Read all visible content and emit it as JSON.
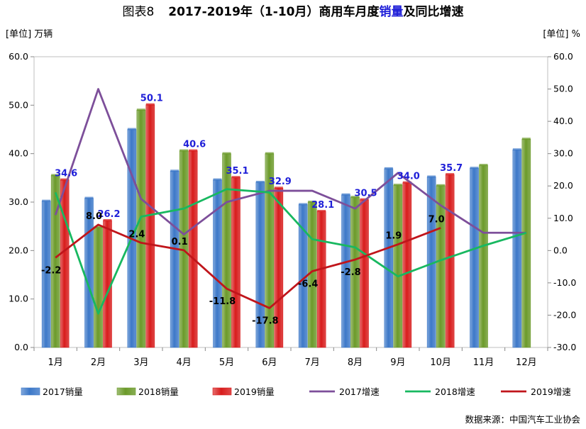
{
  "title": "图表8　 2017-2019年（1-10月）商用车月度销量及同比增速",
  "title_parts": {
    "prefix": "图表8",
    "main_a": "2017-2019年（1-10月）商用车月度",
    "main_hl": "销量",
    "main_b": "及同比增速"
  },
  "source": "数据来源：中国汽车工业协会",
  "colors": {
    "bar2017": "#3c78c8",
    "bar2018": "#6b9a2a",
    "bar2019": "#d81c1c",
    "line2017": "#7d4f9a",
    "line2018": "#18b860",
    "line2019": "#c0151b",
    "highlight": "#1f1fd8"
  },
  "chart_data": {
    "type": "bar",
    "categories": [
      "1月",
      "2月",
      "3月",
      "4月",
      "5月",
      "6月",
      "7月",
      "8月",
      "9月",
      "10月",
      "11月",
      "12月"
    ],
    "left_axis": {
      "label": "[单位] 万辆",
      "ylim": [
        0,
        60
      ],
      "ticks": [
        "0.0",
        "10.0",
        "20.0",
        "30.0",
        "40.0",
        "50.0",
        "60.0"
      ]
    },
    "right_axis": {
      "label": "[单位] %",
      "ylim": [
        -30,
        60
      ],
      "ticks": [
        "-30.0",
        "-20.0",
        "-10.0",
        "0.0",
        "10.0",
        "20.0",
        "30.0",
        "40.0",
        "50.0",
        "60.0"
      ]
    },
    "bar_series": [
      {
        "name": "2017销量",
        "values": [
          30.2,
          30.8,
          45.0,
          36.4,
          34.6,
          34.1,
          29.5,
          31.5,
          36.9,
          35.2,
          37.0,
          40.8
        ]
      },
      {
        "name": "2018销量",
        "values": [
          35.5,
          24.8,
          49.0,
          40.6,
          40.0,
          40.0,
          30.0,
          31.0,
          33.5,
          33.4,
          37.6,
          43.0
        ]
      },
      {
        "name": "2019销量",
        "values": [
          34.6,
          26.2,
          50.1,
          40.6,
          35.1,
          32.9,
          28.1,
          30.5,
          34.0,
          35.7,
          null,
          null
        ],
        "labels": [
          "34.6",
          "26.2",
          "50.1",
          "40.6",
          "35.1",
          "32.9",
          "28.1",
          "30.5",
          "34.0",
          "35.7",
          "",
          ""
        ]
      }
    ],
    "line_series": [
      {
        "name": "2017增速",
        "values": [
          11.0,
          50.0,
          16.0,
          5.0,
          15.0,
          18.5,
          18.5,
          13.0,
          24.0,
          14.0,
          5.5,
          5.5
        ]
      },
      {
        "name": "2018增速",
        "values": [
          18.0,
          -19.5,
          10.5,
          13.0,
          19.0,
          18.0,
          3.5,
          1.0,
          -8.0,
          -3.0,
          1.5,
          5.5
        ]
      },
      {
        "name": "2019增速",
        "values": [
          -2.2,
          8.0,
          2.4,
          0.1,
          -11.8,
          -17.8,
          -6.4,
          -2.8,
          1.9,
          7.0,
          null,
          null
        ],
        "labels": [
          "-2.2",
          "8.0",
          "2.4",
          "0.1",
          "-11.8",
          "-17.8",
          "-6.4",
          "-2.8",
          "1.9",
          "7.0",
          "",
          ""
        ]
      }
    ],
    "legend": [
      "2017销量",
      "2018销量",
      "2019销量",
      "2017增速",
      "2018增速",
      "2019增速"
    ],
    "legend_position": "bottom",
    "grid": false
  }
}
